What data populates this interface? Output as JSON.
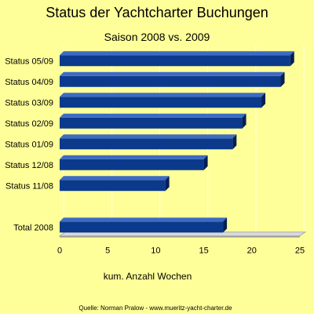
{
  "colors": {
    "background": "#ffff99",
    "bar_front": "#0b3a8c",
    "bar_top": "#3d6bc4",
    "bar_side": "#051f55",
    "floor": "#d8d8d8",
    "floor_edge": "#a0a0a0",
    "grid": "#ffffff"
  },
  "chart_data": {
    "type": "bar",
    "orientation": "horizontal",
    "title": "Status der Yachtcharter Buchungen",
    "subtitle": "Saison 2008 vs. 2009",
    "xlabel": "kum. Anzahl Wochen",
    "ylabel": "",
    "xlim": [
      0,
      25
    ],
    "xticks": [
      "0",
      "5",
      "10",
      "15",
      "20",
      "25"
    ],
    "grid": true,
    "categories": [
      "Status 05/09",
      "Status 04/09",
      "Status 03/09",
      "Status 02/09",
      "Status 01/09",
      "Status 12/08",
      "Status 11/08",
      "",
      "Total 2008"
    ],
    "values": [
      24,
      23,
      21,
      19,
      18,
      15,
      11,
      null,
      17
    ],
    "source": "Quelle: Norman Pralow -  www.mueritz-yacht-charter.de"
  }
}
